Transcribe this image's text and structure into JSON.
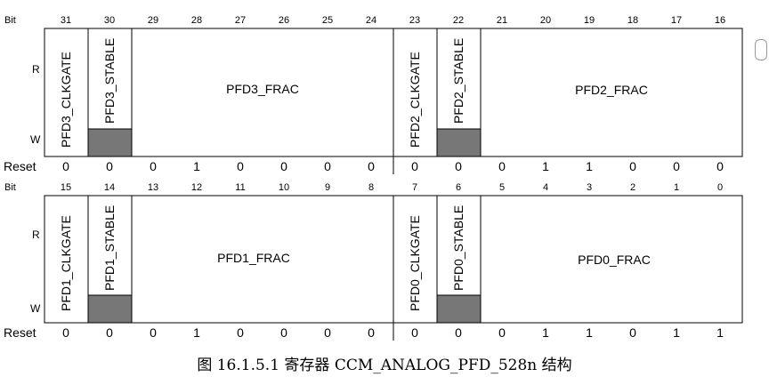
{
  "labels": {
    "bit": "Bit",
    "read": "R",
    "write": "W",
    "reset": "Reset"
  },
  "top_register": {
    "bits": [
      "31",
      "30",
      "29",
      "28",
      "27",
      "26",
      "25",
      "24",
      "23",
      "22",
      "21",
      "20",
      "19",
      "18",
      "17",
      "16"
    ],
    "fields": {
      "clkgate_high": "PFD3_CLKGATE",
      "stable_high": "PFD3_STABLE",
      "frac_high": "PFD3_FRAC",
      "clkgate_low": "PFD2_CLKGATE",
      "stable_low": "PFD2_STABLE",
      "frac_low": "PFD2_FRAC"
    },
    "reset_values": [
      "0",
      "0",
      "0",
      "1",
      "0",
      "0",
      "0",
      "0",
      "0",
      "0",
      "0",
      "1",
      "1",
      "0",
      "0",
      "0"
    ]
  },
  "bottom_register": {
    "bits": [
      "15",
      "14",
      "13",
      "12",
      "11",
      "10",
      "9",
      "8",
      "7",
      "6",
      "5",
      "4",
      "3",
      "2",
      "1",
      "0"
    ],
    "fields": {
      "clkgate_high": "PFD1_CLKGATE",
      "stable_high": "PFD1_STABLE",
      "frac_high": "PFD1_FRAC",
      "clkgate_low": "PFD0_CLKGATE",
      "stable_low": "PFD0_STABLE",
      "frac_low": "PFD0_FRAC"
    },
    "reset_values": [
      "0",
      "0",
      "0",
      "1",
      "0",
      "0",
      "0",
      "0",
      "0",
      "0",
      "0",
      "1",
      "1",
      "0",
      "1",
      "1"
    ]
  },
  "caption": "图 16.1.5.1  寄存器 CCM_ANALOG_PFD_528n 结构",
  "colors": {
    "reserved_fill": "#777777",
    "border": "#000000"
  }
}
